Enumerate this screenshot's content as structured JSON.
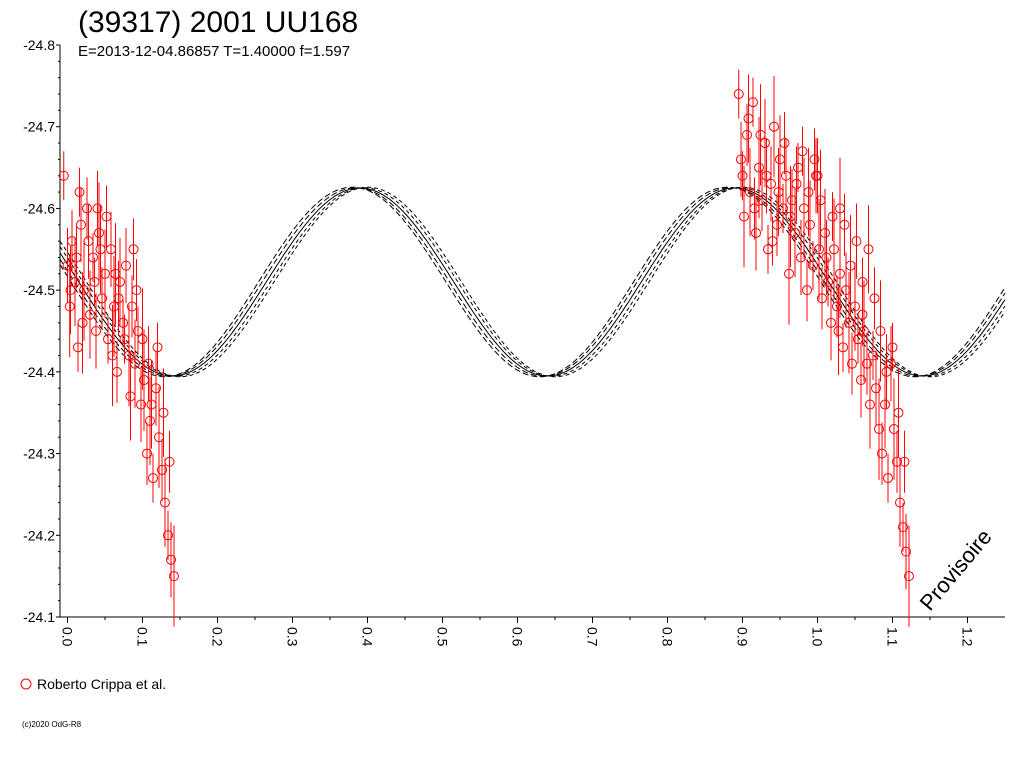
{
  "chart_data": {
    "type": "scatter",
    "title": "(39317) 2001 UU168",
    "subtitle": "E=2013-12-04.86857    T=1.40000    f=1.597",
    "xlabel": "",
    "ylabel": "",
    "xlim": [
      -0.01,
      1.25
    ],
    "ylim": [
      -24.8,
      -24.1
    ],
    "x_ticks": [
      "0.0",
      "0.1",
      "0.2",
      "0.3",
      "0.4",
      "0.5",
      "0.6",
      "0.7",
      "0.8",
      "0.9",
      "1.0",
      "1.1",
      "1.2"
    ],
    "y_ticks": [
      "-24.8",
      "-24.7",
      "-24.6",
      "-24.5",
      "-24.4",
      "-24.3",
      "-24.2",
      "-24.1"
    ],
    "y_inverted": true,
    "grid": false,
    "legend_position": "bottom-left",
    "watermark": "Provisoire",
    "copyright": "(c)2020 OdG-R8",
    "series": [
      {
        "name": "Roberto Crippa et al.",
        "color": "#ff0000",
        "marker": "open-circle",
        "points": [
          [
            -0.005,
            -24.64
          ],
          [
            0.0,
            -24.53
          ],
          [
            0.003,
            -24.48
          ],
          [
            0.006,
            -24.56
          ],
          [
            0.01,
            -24.51
          ],
          [
            0.014,
            -24.43
          ],
          [
            0.018,
            -24.58
          ],
          [
            0.022,
            -24.5
          ],
          [
            0.026,
            -24.6
          ],
          [
            0.03,
            -24.47
          ],
          [
            0.034,
            -24.54
          ],
          [
            0.038,
            -24.45
          ],
          [
            0.042,
            -24.57
          ],
          [
            0.046,
            -24.49
          ],
          [
            0.05,
            -24.52
          ],
          [
            0.054,
            -24.44
          ],
          [
            0.058,
            -24.55
          ],
          [
            0.062,
            -24.48
          ],
          [
            0.066,
            -24.4
          ],
          [
            0.07,
            -24.51
          ],
          [
            0.074,
            -24.46
          ],
          [
            0.078,
            -24.53
          ],
          [
            0.082,
            -24.42
          ],
          [
            0.086,
            -24.48
          ],
          [
            0.09,
            -24.41
          ],
          [
            0.094,
            -24.45
          ],
          [
            0.098,
            -24.36
          ],
          [
            0.102,
            -24.39
          ],
          [
            0.106,
            -24.3
          ],
          [
            0.11,
            -24.34
          ],
          [
            0.114,
            -24.27
          ],
          [
            0.118,
            -24.38
          ],
          [
            0.122,
            -24.32
          ],
          [
            0.126,
            -24.28
          ],
          [
            0.13,
            -24.24
          ],
          [
            0.134,
            -24.2
          ],
          [
            0.138,
            -24.17
          ],
          [
            0.142,
            -24.15
          ],
          [
            0.136,
            -24.29
          ],
          [
            0.128,
            -24.35
          ],
          [
            0.12,
            -24.43
          ],
          [
            0.108,
            -24.41
          ],
          [
            0.1,
            -24.44
          ],
          [
            0.092,
            -24.5
          ],
          [
            0.084,
            -24.37
          ],
          [
            0.076,
            -24.44
          ],
          [
            0.068,
            -24.49
          ],
          [
            0.06,
            -24.42
          ],
          [
            0.052,
            -24.59
          ],
          [
            0.044,
            -24.55
          ],
          [
            0.036,
            -24.51
          ],
          [
            0.028,
            -24.56
          ],
          [
            0.02,
            -24.46
          ],
          [
            0.012,
            -24.54
          ],
          [
            0.004,
            -24.5
          ],
          [
            0.016,
            -24.62
          ],
          [
            0.04,
            -24.6
          ],
          [
            0.064,
            -24.52
          ],
          [
            0.088,
            -24.55
          ],
          [
            0.112,
            -24.36
          ],
          [
            0.895,
            -24.74
          ],
          [
            0.898,
            -24.66
          ],
          [
            0.902,
            -24.59
          ],
          [
            0.906,
            -24.69
          ],
          [
            0.91,
            -24.62
          ],
          [
            0.914,
            -24.73
          ],
          [
            0.918,
            -24.57
          ],
          [
            0.922,
            -24.65
          ],
          [
            0.926,
            -24.61
          ],
          [
            0.93,
            -24.68
          ],
          [
            0.934,
            -24.55
          ],
          [
            0.938,
            -24.63
          ],
          [
            0.942,
            -24.7
          ],
          [
            0.946,
            -24.58
          ],
          [
            0.95,
            -24.66
          ],
          [
            0.954,
            -24.6
          ],
          [
            0.958,
            -24.64
          ],
          [
            0.962,
            -24.52
          ],
          [
            0.966,
            -24.61
          ],
          [
            0.97,
            -24.57
          ],
          [
            0.974,
            -24.65
          ],
          [
            0.978,
            -24.54
          ],
          [
            0.982,
            -24.6
          ],
          [
            0.986,
            -24.5
          ],
          [
            0.99,
            -24.58
          ],
          [
            0.994,
            -24.53
          ],
          [
            0.998,
            -24.64
          ],
          [
            1.002,
            -24.55
          ],
          [
            1.006,
            -24.49
          ],
          [
            1.01,
            -24.57
          ],
          [
            1.014,
            -24.51
          ],
          [
            1.018,
            -24.46
          ],
          [
            1.022,
            -24.55
          ],
          [
            1.026,
            -24.48
          ],
          [
            1.03,
            -24.52
          ],
          [
            1.034,
            -24.43
          ],
          [
            1.038,
            -24.5
          ],
          [
            1.042,
            -24.46
          ],
          [
            1.046,
            -24.41
          ],
          [
            1.05,
            -24.48
          ],
          [
            1.054,
            -24.44
          ],
          [
            1.058,
            -24.39
          ],
          [
            1.062,
            -24.45
          ],
          [
            1.066,
            -24.41
          ],
          [
            1.07,
            -24.36
          ],
          [
            1.074,
            -24.42
          ],
          [
            1.078,
            -24.38
          ],
          [
            1.082,
            -24.33
          ],
          [
            1.086,
            -24.3
          ],
          [
            1.09,
            -24.36
          ],
          [
            1.094,
            -24.27
          ],
          [
            1.098,
            -24.41
          ],
          [
            1.102,
            -24.33
          ],
          [
            1.106,
            -24.29
          ],
          [
            1.11,
            -24.24
          ],
          [
            1.114,
            -24.21
          ],
          [
            1.118,
            -24.18
          ],
          [
            1.122,
            -24.15
          ],
          [
            1.116,
            -24.29
          ],
          [
            1.108,
            -24.35
          ],
          [
            1.1,
            -24.43
          ],
          [
            1.092,
            -24.4
          ],
          [
            1.084,
            -24.45
          ],
          [
            1.076,
            -24.49
          ],
          [
            1.068,
            -24.55
          ],
          [
            1.06,
            -24.51
          ],
          [
            1.052,
            -24.56
          ],
          [
            1.044,
            -24.53
          ],
          [
            1.036,
            -24.58
          ],
          [
            1.028,
            -24.45
          ],
          [
            1.02,
            -24.59
          ],
          [
            1.012,
            -24.54
          ],
          [
            1.004,
            -24.61
          ],
          [
            0.996,
            -24.66
          ],
          [
            0.988,
            -24.62
          ],
          [
            0.98,
            -24.67
          ],
          [
            0.972,
            -24.63
          ],
          [
            0.964,
            -24.59
          ],
          [
            0.956,
            -24.68
          ],
          [
            0.948,
            -24.62
          ],
          [
            0.94,
            -24.56
          ],
          [
            0.932,
            -24.64
          ],
          [
            0.924,
            -24.69
          ],
          [
            0.916,
            -24.6
          ],
          [
            0.908,
            -24.71
          ],
          [
            0.9,
            -24.64
          ],
          [
            1.0,
            -24.64
          ],
          [
            1.03,
            -24.6
          ],
          [
            1.06,
            -24.47
          ]
        ]
      }
    ],
    "model": {
      "period_fraction": 0.5,
      "mean": -24.51,
      "amplitude": 0.115,
      "phase_of_max": 0.39,
      "offsets": [
        0.0,
        0.008,
        -0.008,
        0.015,
        -0.015
      ]
    }
  },
  "legend": {
    "label": "Roberto Crippa et al."
  },
  "footer": {
    "copyright": "(c)2020 OdG-R8",
    "watermark": "Provisoire"
  }
}
